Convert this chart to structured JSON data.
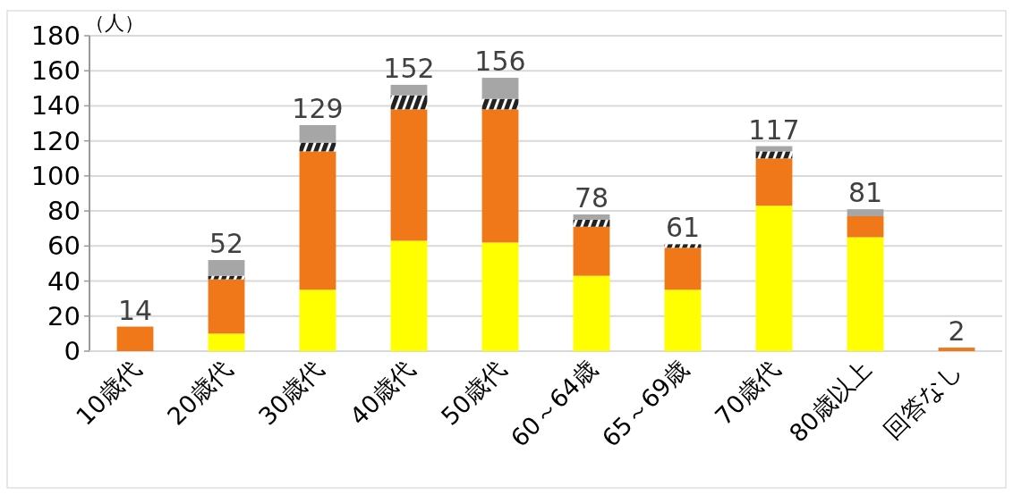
{
  "chart_data": {
    "type": "bar",
    "stacked": true,
    "ylabel": "（人）",
    "categories": [
      "10歳代",
      "20歳代",
      "30歳代",
      "40歳代",
      "50歳代",
      "60～64歳",
      "65～69歳",
      "70歳代",
      "80歳以上",
      "回答なし"
    ],
    "series": [
      {
        "color": "#ffff00",
        "values": [
          0,
          10,
          35,
          63,
          62,
          43,
          35,
          83,
          65,
          0
        ]
      },
      {
        "color": "#f07818",
        "values": [
          14,
          31,
          79,
          75,
          76,
          28,
          24,
          27,
          12,
          2
        ]
      },
      {
        "color": "#222222",
        "values": [
          0,
          2,
          5,
          8,
          6,
          4,
          2,
          4,
          0,
          0
        ]
      },
      {
        "color": "#a6a6a6",
        "values": [
          0,
          9,
          10,
          6,
          12,
          3,
          0,
          3,
          4,
          0
        ]
      }
    ],
    "totals": [
      "14",
      "52",
      "129",
      "152",
      "156",
      "78",
      "61",
      "117",
      "81",
      "2"
    ],
    "ylim": [
      0,
      180
    ],
    "yticks": [
      0,
      20,
      40,
      60,
      80,
      100,
      120,
      140,
      160,
      180
    ],
    "grid": "y"
  }
}
